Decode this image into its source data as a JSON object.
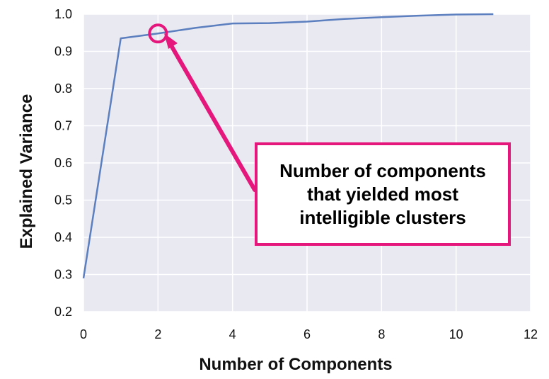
{
  "chart_data": {
    "type": "line",
    "xlabel": "Number of Components",
    "ylabel": "Explained Variance",
    "xlim": [
      0,
      12
    ],
    "ylim": [
      0.2,
      1.0
    ],
    "xticks": [
      "0",
      "2",
      "4",
      "6",
      "8",
      "10",
      "12"
    ],
    "yticks": [
      "0.2",
      "0.3",
      "0.4",
      "0.5",
      "0.6",
      "0.7",
      "0.8",
      "0.9",
      "1.0"
    ],
    "grid": true,
    "series": [
      {
        "x": [
          0,
          1,
          2,
          3,
          4,
          5,
          6,
          7,
          8,
          9,
          10,
          11
        ],
        "y": [
          0.29,
          0.935,
          0.948,
          0.963,
          0.975,
          0.976,
          0.98,
          0.987,
          0.992,
          0.996,
          0.999,
          1.0
        ]
      }
    ],
    "annotations": [
      {
        "text_lines": [
          "Number of components",
          "that yielded most",
          "intelligible clusters"
        ],
        "marker_at": {
          "x": 2,
          "y": 0.948
        }
      }
    ],
    "colors": {
      "plot_bg": "#e9e9f2",
      "line": "#5b7fbf",
      "accent": "#e6177c"
    }
  }
}
